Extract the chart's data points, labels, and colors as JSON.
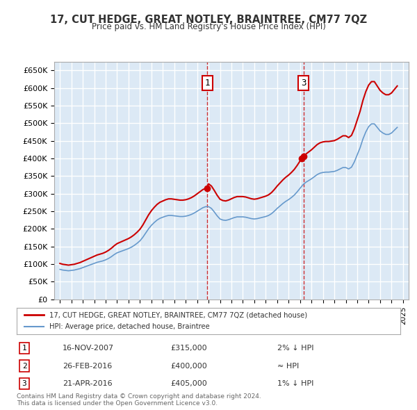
{
  "title": "17, CUT HEDGE, GREAT NOTLEY, BRAINTREE, CM77 7QZ",
  "subtitle": "Price paid vs. HM Land Registry's House Price Index (HPI)",
  "ylabel_ticks": [
    "£0",
    "£50K",
    "£100K",
    "£150K",
    "£200K",
    "£250K",
    "£300K",
    "£350K",
    "£400K",
    "£450K",
    "£500K",
    "£550K",
    "£600K",
    "£650K"
  ],
  "ytick_vals": [
    0,
    50000,
    100000,
    150000,
    200000,
    250000,
    300000,
    350000,
    400000,
    450000,
    500000,
    550000,
    600000,
    650000
  ],
  "ylim": [
    0,
    675000
  ],
  "xlim_start": 1994.5,
  "xlim_end": 2025.5,
  "background_color": "#dce9f5",
  "plot_bg": "#dce9f5",
  "grid_color": "#ffffff",
  "sale_color": "#cc0000",
  "hpi_color": "#6699cc",
  "sale_label": "17, CUT HEDGE, GREAT NOTLEY, BRAINTREE, CM77 7QZ (detached house)",
  "hpi_label": "HPI: Average price, detached house, Braintree",
  "transactions": [
    {
      "num": 1,
      "date": "16-NOV-2007",
      "price": 315000,
      "year": 2007.88,
      "relation": "2% ↓ HPI"
    },
    {
      "num": 2,
      "date": "26-FEB-2016",
      "price": 400000,
      "year": 2016.15,
      "relation": "≈ HPI"
    },
    {
      "num": 3,
      "date": "21-APR-2016",
      "price": 405000,
      "year": 2016.3,
      "relation": "1% ↓ HPI"
    }
  ],
  "footnote1": "Contains HM Land Registry data © Crown copyright and database right 2024.",
  "footnote2": "This data is licensed under the Open Government Licence v3.0.",
  "hpi_data_x": [
    1995.0,
    1995.25,
    1995.5,
    1995.75,
    1996.0,
    1996.25,
    1996.5,
    1996.75,
    1997.0,
    1997.25,
    1997.5,
    1997.75,
    1998.0,
    1998.25,
    1998.5,
    1998.75,
    1999.0,
    1999.25,
    1999.5,
    1999.75,
    2000.0,
    2000.25,
    2000.5,
    2000.75,
    2001.0,
    2001.25,
    2001.5,
    2001.75,
    2002.0,
    2002.25,
    2002.5,
    2002.75,
    2003.0,
    2003.25,
    2003.5,
    2003.75,
    2004.0,
    2004.25,
    2004.5,
    2004.75,
    2005.0,
    2005.25,
    2005.5,
    2005.75,
    2006.0,
    2006.25,
    2006.5,
    2006.75,
    2007.0,
    2007.25,
    2007.5,
    2007.75,
    2008.0,
    2008.25,
    2008.5,
    2008.75,
    2009.0,
    2009.25,
    2009.5,
    2009.75,
    2010.0,
    2010.25,
    2010.5,
    2010.75,
    2011.0,
    2011.25,
    2011.5,
    2011.75,
    2012.0,
    2012.25,
    2012.5,
    2012.75,
    2013.0,
    2013.25,
    2013.5,
    2013.75,
    2014.0,
    2014.25,
    2014.5,
    2014.75,
    2015.0,
    2015.25,
    2015.5,
    2015.75,
    2016.0,
    2016.25,
    2016.5,
    2016.75,
    2017.0,
    2017.25,
    2017.5,
    2017.75,
    2018.0,
    2018.25,
    2018.5,
    2018.75,
    2019.0,
    2019.25,
    2019.5,
    2019.75,
    2020.0,
    2020.25,
    2020.5,
    2020.75,
    2021.0,
    2021.25,
    2021.5,
    2021.75,
    2022.0,
    2022.25,
    2022.5,
    2022.75,
    2023.0,
    2023.25,
    2023.5,
    2023.75,
    2024.0,
    2024.25,
    2024.5
  ],
  "hpi_data_y": [
    85000,
    83000,
    82000,
    81000,
    82000,
    83000,
    85000,
    87000,
    90000,
    93000,
    96000,
    99000,
    102000,
    105000,
    107000,
    109000,
    112000,
    116000,
    121000,
    127000,
    132000,
    135000,
    138000,
    141000,
    144000,
    148000,
    153000,
    159000,
    166000,
    176000,
    188000,
    200000,
    210000,
    218000,
    225000,
    230000,
    233000,
    236000,
    238000,
    238000,
    237000,
    236000,
    235000,
    235000,
    236000,
    238000,
    241000,
    245000,
    250000,
    255000,
    260000,
    263000,
    263000,
    258000,
    248000,
    237000,
    228000,
    225000,
    224000,
    226000,
    229000,
    232000,
    234000,
    234000,
    234000,
    233000,
    231000,
    229000,
    228000,
    229000,
    231000,
    233000,
    235000,
    238000,
    243000,
    250000,
    258000,
    265000,
    272000,
    278000,
    283000,
    289000,
    296000,
    305000,
    315000,
    325000,
    332000,
    337000,
    342000,
    348000,
    354000,
    358000,
    360000,
    361000,
    361000,
    362000,
    363000,
    366000,
    370000,
    374000,
    374000,
    370000,
    375000,
    390000,
    410000,
    430000,
    455000,
    475000,
    490000,
    498000,
    498000,
    488000,
    478000,
    472000,
    468000,
    468000,
    472000,
    480000,
    488000
  ],
  "sale_data_x": [
    2007.88,
    2016.15,
    2016.3
  ],
  "sale_data_y": [
    315000,
    400000,
    405000
  ],
  "show_transactions": [
    1,
    3
  ],
  "vline_x": [
    2007.88,
    2016.3
  ]
}
